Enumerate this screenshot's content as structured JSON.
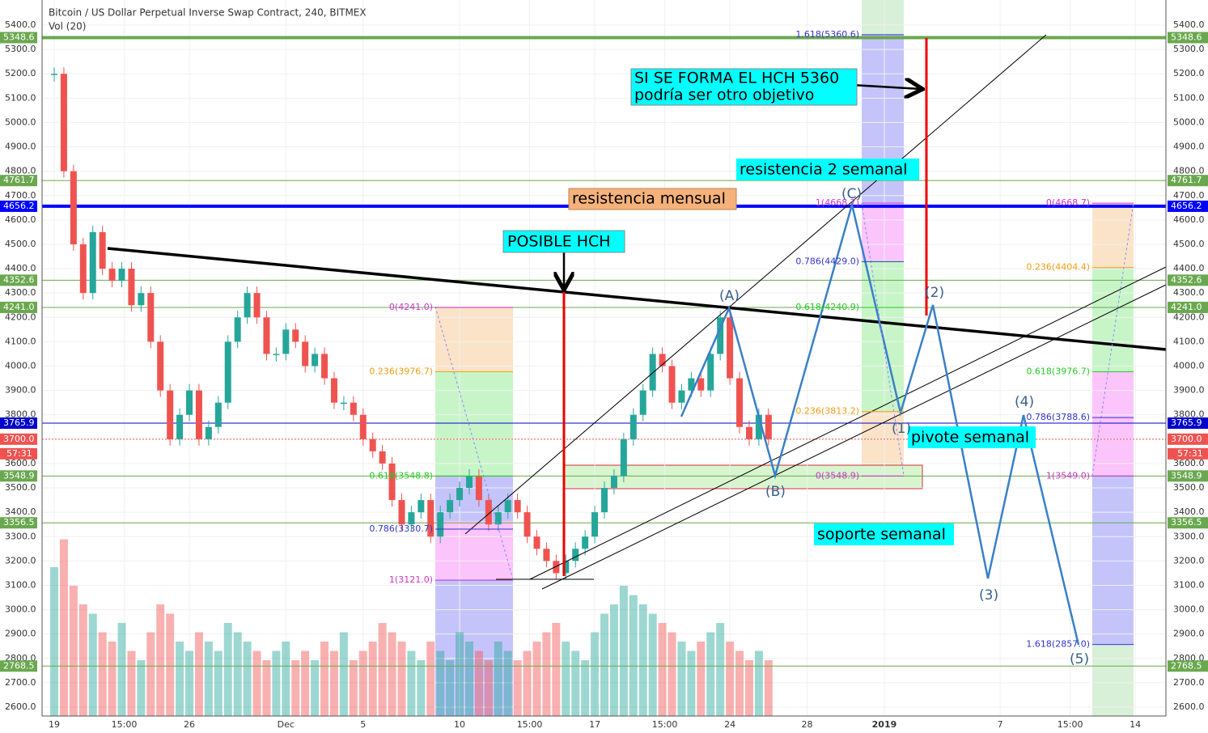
{
  "header": {
    "title": "Bitcoin / US Dollar Perpetual Inverse Swap Contract, 240, BITMEX",
    "indicator": "Vol (20)",
    "countdown": "57:31"
  },
  "chart_data": {
    "type": "candlestick",
    "x": [
      0,
      0.5,
      1,
      1.5,
      2,
      2.5,
      3,
      3.5,
      4,
      4.5,
      5,
      5.5,
      6,
      6.5,
      7,
      7.5,
      8,
      8.5,
      9,
      9.5,
      10,
      10.5,
      11,
      11.5,
      12,
      12.5,
      13,
      13.5,
      14,
      14.5,
      15,
      15.5,
      16,
      16.5,
      17,
      17.5,
      18,
      18.5,
      19,
      19.5,
      20,
      20.5,
      21,
      21.5,
      22,
      22.5,
      23,
      23.5,
      24,
      24.5,
      25,
      25.5,
      26,
      26.5,
      27,
      27.5,
      28,
      28.5,
      29,
      29.5,
      30,
      30.5,
      31,
      31.5,
      32,
      32.5,
      33,
      33.5,
      34,
      34.5,
      35,
      35.5,
      36,
      36.5,
      37
    ],
    "values": [
      5200,
      4800,
      4500,
      4300,
      4550,
      4400,
      4350,
      4400,
      4250,
      4300,
      4100,
      3900,
      3700,
      3800,
      3900,
      3700,
      3750,
      3850,
      4100,
      4200,
      4300,
      4200,
      4050,
      4050,
      4150,
      4100,
      4000,
      4050,
      3950,
      3850,
      3850,
      3800,
      3700,
      3650,
      3600,
      3450,
      3350,
      3400,
      3450,
      3300,
      3400,
      3450,
      3500,
      3550,
      3450,
      3350,
      3400,
      3450,
      3400,
      3300,
      3250,
      3200,
      3150,
      3200,
      3250,
      3300,
      3400,
      3500,
      3550,
      3700,
      3800,
      3900,
      4050,
      4000,
      3850,
      3900,
      3950,
      3900,
      4050,
      4200,
      3950,
      3750,
      3700,
      3800,
      3700
    ],
    "volume": [
      80,
      95,
      70,
      60,
      55,
      45,
      40,
      50,
      35,
      30,
      45,
      60,
      55,
      40,
      35,
      45,
      40,
      35,
      50,
      45,
      40,
      35,
      30,
      35,
      40,
      30,
      35,
      30,
      40,
      35,
      45,
      30,
      35,
      40,
      50,
      45,
      40,
      35,
      30,
      40,
      35,
      30,
      45,
      40,
      35,
      30,
      40,
      35,
      30,
      35,
      40,
      45,
      50,
      40,
      35,
      30,
      45,
      55,
      60,
      70,
      65,
      60,
      55,
      50,
      45,
      40,
      35,
      40,
      45,
      50,
      40,
      35,
      30,
      35,
      30
    ],
    "ylim": [
      2600,
      5400
    ],
    "yticks": [
      {
        "value": 5400,
        "label": "5400.0"
      },
      {
        "value": 5300,
        "label": "5300.0"
      },
      {
        "value": 5200,
        "label": "5200.0"
      },
      {
        "value": 5100,
        "label": "5100.0"
      },
      {
        "value": 5000,
        "label": "5000.0"
      },
      {
        "value": 4900,
        "label": "4900.0"
      },
      {
        "value": 4800,
        "label": "4800.0"
      },
      {
        "value": 4700,
        "label": "4700.0"
      },
      {
        "value": 4600,
        "label": "4600.0"
      },
      {
        "value": 4500,
        "label": "4500.0"
      },
      {
        "value": 4400,
        "label": "4400.0"
      },
      {
        "value": 4300,
        "label": "4300.0"
      },
      {
        "value": 4200,
        "label": "4200.0"
      },
      {
        "value": 4100,
        "label": "4100.0"
      },
      {
        "value": 4000,
        "label": "4000.0"
      },
      {
        "value": 3900,
        "label": "3900.0"
      },
      {
        "value": 3800,
        "label": "3800.0"
      },
      {
        "value": 3700,
        "label": "3700.0"
      },
      {
        "value": 3600,
        "label": "3600.0"
      },
      {
        "value": 3500,
        "label": "3500.0"
      },
      {
        "value": 3400,
        "label": "3400.0"
      },
      {
        "value": 3300,
        "label": "3300.0"
      },
      {
        "value": 3200,
        "label": "3200.0"
      },
      {
        "value": 3100,
        "label": "3100.0"
      },
      {
        "value": 3000,
        "label": "3000.0"
      },
      {
        "value": 2900,
        "label": "2900.0"
      },
      {
        "value": 2800,
        "label": "2800.0"
      },
      {
        "value": 2700,
        "label": "2700.0"
      },
      {
        "value": 2600,
        "label": "2600.0"
      }
    ],
    "xlim": [
      -0.6,
      57.6
    ],
    "xticks": [
      {
        "value": 0,
        "label": "19"
      },
      {
        "value": 3.625,
        "label": "15:00"
      },
      {
        "value": 7,
        "label": "26"
      },
      {
        "value": 12,
        "label": "Dec"
      },
      {
        "value": 16,
        "label": "5"
      },
      {
        "value": 21,
        "label": "10"
      },
      {
        "value": 24.625,
        "label": "15:00"
      },
      {
        "value": 28,
        "label": "17"
      },
      {
        "value": 31.625,
        "label": "15:00"
      },
      {
        "value": 35,
        "label": "24"
      },
      {
        "value": 39,
        "label": "28"
      },
      {
        "value": 43,
        "label": "2019"
      },
      {
        "value": 49,
        "label": "7"
      },
      {
        "value": 52.625,
        "label": "15:00"
      },
      {
        "value": 56,
        "label": "14"
      }
    ],
    "up_color": "#26a69a",
    "down_color": "#ef5350",
    "price_markers": [
      {
        "value": 5348.6,
        "label": "5348.6",
        "color": "#6aa84f"
      },
      {
        "value": 4761.7,
        "label": "4761.7",
        "color": "#6aa84f"
      },
      {
        "value": 4656.2,
        "label": "4656.2",
        "color": "#0000ff"
      },
      {
        "value": 4352.6,
        "label": "4352.6",
        "color": "#6aa84f"
      },
      {
        "value": 4241.0,
        "label": "4241.0",
        "color": "#6aa84f"
      },
      {
        "value": 3765.9,
        "label": "3765.9",
        "color": "#0000cc"
      },
      {
        "value": 3700.0,
        "label": "3700.0",
        "color": "#ef5350"
      },
      {
        "value": 3548.9,
        "label": "3548.9",
        "color": "#6aa84f"
      },
      {
        "value": 3356.5,
        "label": "3356.5",
        "color": "#6aa84f"
      },
      {
        "value": 2768.5,
        "label": "2768.5",
        "color": "#6aa84f"
      }
    ],
    "fib_sets": [
      {
        "levels": [
          {
            "value": 4241.0,
            "label": "0(4241.0)",
            "color": "#cc33cc"
          },
          {
            "value": 3976.7,
            "label": "0.236(3976.7)",
            "color": "#f39c12"
          },
          {
            "value": 3548.8,
            "label": "0.618(3548.8)",
            "color": "#22cc22"
          },
          {
            "value": 3330.7,
            "label": "0.786(3330.7)",
            "color": "#3333cc"
          },
          {
            "value": 3121.0,
            "label": "1(3121.0)",
            "color": "#cc33cc"
          }
        ]
      },
      {
        "levels": [
          {
            "value": 5360.6,
            "label": "1.618(5360.6)",
            "color": "#3333cc"
          },
          {
            "value": 4668.7,
            "label": "1(4668.7)",
            "color": "#cc33cc"
          },
          {
            "value": 4429.0,
            "label": "0.786(4429.0)",
            "color": "#3333cc"
          },
          {
            "value": 4240.9,
            "label": "0.618(4240.9)",
            "color": "#22cc22"
          },
          {
            "value": 3813.2,
            "label": "0.236(3813.2)",
            "color": "#f39c12"
          },
          {
            "value": 3548.9,
            "label": "0(3548.9)",
            "color": "#cc33cc"
          }
        ]
      },
      {
        "levels": [
          {
            "value": 4668.7,
            "label": "0(4668.7)",
            "color": "#cc33cc"
          },
          {
            "value": 4404.4,
            "label": "0.236(4404.4)",
            "color": "#f39c12"
          },
          {
            "value": 3976.7,
            "label": "0.618(3976.7)",
            "color": "#22cc22"
          },
          {
            "value": 3788.6,
            "label": "0.786(3788.6)",
            "color": "#3333cc"
          },
          {
            "value": 3549.0,
            "label": "1(3549.0)",
            "color": "#cc33cc"
          },
          {
            "value": 2857.0,
            "label": "1.618(2857.0)",
            "color": "#3333cc"
          }
        ]
      }
    ]
  },
  "annotations": {
    "hch_5360": [
      "SI SE FORMA EL HCH 5360",
      "podría ser otro objetivo"
    ],
    "resistencia_2": "resistencia 2 semanal",
    "resistencia_mensual": "resistencia mensual",
    "posible_hch": "POSIBLE HCH",
    "pivote": "pivote semanal",
    "soporte": "soporte semanal",
    "waves": [
      "(A)",
      "(B)",
      "(C)",
      "(1)",
      "(2)",
      "(3)",
      "(4)",
      "(5)"
    ]
  }
}
